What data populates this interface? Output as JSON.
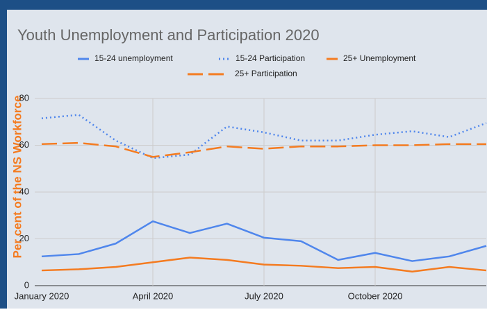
{
  "chart_data": {
    "type": "line",
    "title": "Youth Unemployment and Participation 2020",
    "y_label": "Per cent of the NS Workforce",
    "categories": [
      "January 2020",
      null,
      null,
      "April 2020",
      null,
      null,
      "July 2020",
      null,
      null,
      "October 2020",
      null,
      null,
      null
    ],
    "series": [
      {
        "name": "15-24 unemployment",
        "color": "#4f86ec",
        "dash": "solid",
        "values": [
          12.5,
          13.5,
          18,
          27.5,
          22.5,
          26.5,
          20.5,
          19,
          11,
          14,
          10.5,
          12.5,
          17
        ]
      },
      {
        "name": "15-24 Participation",
        "color": "#4f86ec",
        "dash": "dotted",
        "values": [
          71.5,
          73,
          62,
          54.5,
          56,
          68,
          65.5,
          62,
          62,
          64.5,
          66,
          63.5,
          69.5
        ]
      },
      {
        "name": "25+ Unemployment",
        "color": "#f47b20",
        "dash": "solid",
        "values": [
          6.5,
          7,
          8,
          10,
          12,
          11,
          9,
          8.5,
          7.5,
          8,
          6,
          8,
          6.5
        ]
      },
      {
        "name": "25+ Participation",
        "color": "#f47b20",
        "dash": "long",
        "values": [
          60.5,
          61,
          59.5,
          55,
          57,
          59.5,
          58.5,
          59.5,
          59.5,
          60,
          60,
          60.5,
          60.5
        ]
      }
    ],
    "ylim": [
      0,
      80
    ],
    "yticks": [
      0,
      20,
      40,
      60,
      80
    ],
    "grid": true
  }
}
